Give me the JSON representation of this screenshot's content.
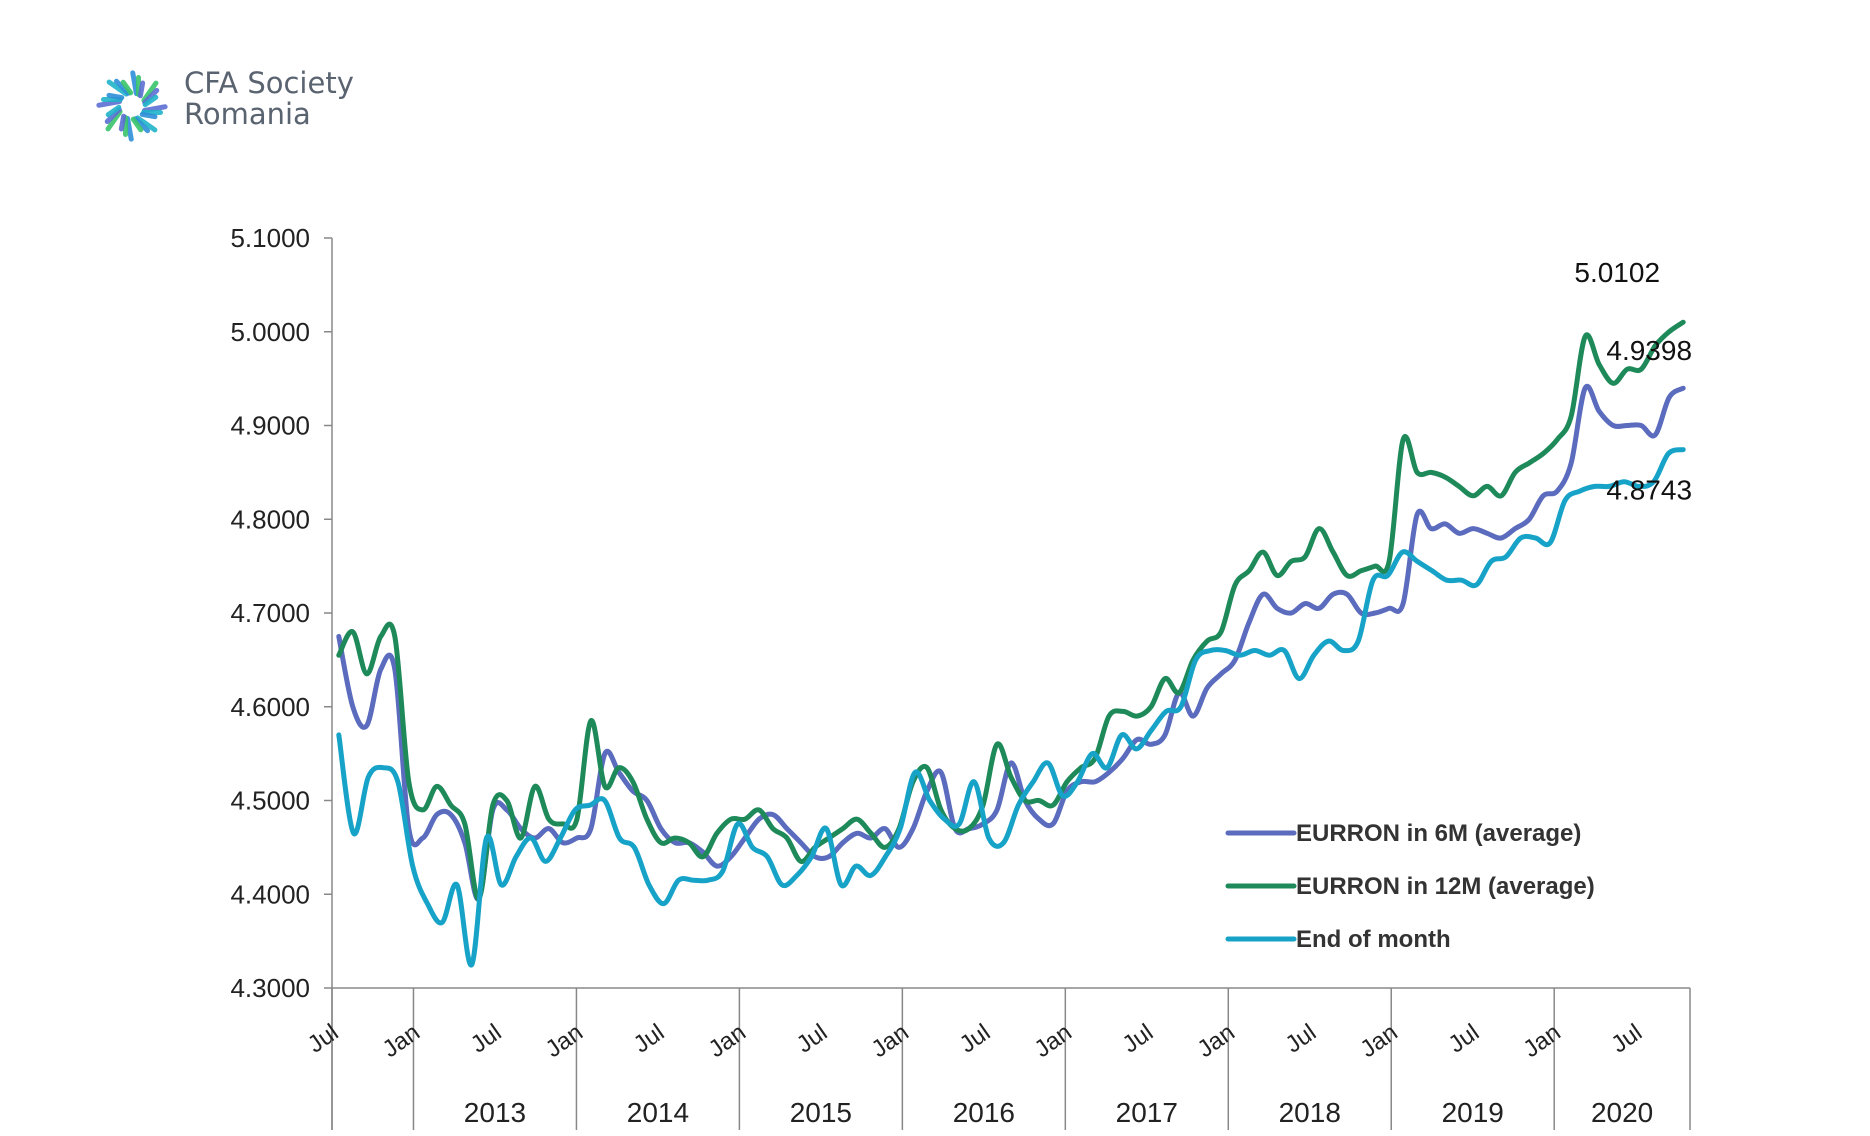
{
  "brand": {
    "name_line1": "CFA Society",
    "name_line2": "Romania",
    "logo_colors": [
      "#2e8fd8",
      "#39c46a",
      "#5b6fd1",
      "#1fb3c9"
    ]
  },
  "chart_data": {
    "type": "line",
    "ylim": [
      4.3,
      5.1
    ],
    "y_ticks": [
      "4.3000",
      "4.4000",
      "4.5000",
      "4.6000",
      "4.7000",
      "4.8000",
      "4.9000",
      "5.0000",
      "5.1000"
    ],
    "x_tick_labels": [
      "Jul",
      "Jan",
      "Jul",
      "Jan",
      "Jul",
      "Jan",
      "Jul",
      "Jan",
      "Jul",
      "Jan",
      "Jul",
      "Jan",
      "Jul",
      "Jan",
      "Jul",
      "Jan",
      "Jul"
    ],
    "years": [
      "2013",
      "2014",
      "2015",
      "2016",
      "2017",
      "2018",
      "2019",
      "2020"
    ],
    "x_start": "2012-07",
    "legend_position": "bottom-right",
    "series": [
      {
        "name": "EURRON in 6M (average)",
        "color": "#5b6bbd",
        "end_label": "4.9398",
        "values": [
          4.675,
          4.6,
          4.58,
          4.64,
          4.64,
          4.47,
          4.46,
          4.485,
          4.485,
          4.455,
          4.395,
          4.49,
          4.49,
          4.47,
          4.46,
          4.47,
          4.455,
          4.46,
          4.47,
          4.55,
          4.53,
          4.51,
          4.5,
          4.47,
          4.455,
          4.455,
          4.445,
          4.43,
          4.44,
          4.46,
          4.48,
          4.485,
          4.47,
          4.455,
          4.44,
          4.44,
          4.455,
          4.465,
          4.46,
          4.47,
          4.45,
          4.47,
          4.51,
          4.53,
          4.47,
          4.47,
          4.475,
          4.49,
          4.54,
          4.5,
          4.48,
          4.475,
          4.51,
          4.52,
          4.52,
          4.53,
          4.545,
          4.565,
          4.56,
          4.57,
          4.615,
          4.59,
          4.62,
          4.635,
          4.65,
          4.69,
          4.72,
          4.705,
          4.7,
          4.71,
          4.705,
          4.72,
          4.72,
          4.7,
          4.7,
          4.705,
          4.71,
          4.805,
          4.79,
          4.795,
          4.785,
          4.79,
          4.785,
          4.78,
          4.79,
          4.8,
          4.825,
          4.83,
          4.86,
          4.94,
          4.915,
          4.9,
          4.9,
          4.9,
          4.89,
          4.93,
          4.9398
        ]
      },
      {
        "name": "EURRON in 12M (average)",
        "color": "#1e8a5a",
        "end_label": "5.0102",
        "values": [
          4.655,
          4.68,
          4.635,
          4.675,
          4.675,
          4.52,
          4.49,
          4.515,
          4.495,
          4.475,
          4.395,
          4.495,
          4.5,
          4.46,
          4.515,
          4.48,
          4.475,
          4.48,
          4.585,
          4.515,
          4.535,
          4.52,
          4.48,
          4.455,
          4.46,
          4.455,
          4.44,
          4.465,
          4.48,
          4.48,
          4.49,
          4.47,
          4.46,
          4.435,
          4.45,
          4.46,
          4.47,
          4.48,
          4.465,
          4.45,
          4.47,
          4.52,
          4.535,
          4.49,
          4.47,
          4.47,
          4.495,
          4.56,
          4.525,
          4.5,
          4.5,
          4.495,
          4.52,
          4.535,
          4.545,
          4.59,
          4.595,
          4.59,
          4.6,
          4.63,
          4.615,
          4.65,
          4.67,
          4.68,
          4.73,
          4.745,
          4.765,
          4.74,
          4.755,
          4.76,
          4.79,
          4.765,
          4.74,
          4.745,
          4.75,
          4.755,
          4.885,
          4.85,
          4.85,
          4.845,
          4.835,
          4.825,
          4.835,
          4.825,
          4.85,
          4.86,
          4.87,
          4.885,
          4.91,
          4.995,
          4.965,
          4.945,
          4.96,
          4.96,
          4.985,
          5.0,
          5.0102
        ]
      },
      {
        "name": "End of month",
        "color": "#17a3c8",
        "end_label": "4.8743",
        "values": [
          4.57,
          4.465,
          4.525,
          4.535,
          4.52,
          4.43,
          4.39,
          4.37,
          4.41,
          4.325,
          4.46,
          4.41,
          4.44,
          4.46,
          4.435,
          4.46,
          4.49,
          4.495,
          4.5,
          4.46,
          4.45,
          4.41,
          4.39,
          4.415,
          4.415,
          4.415,
          4.425,
          4.475,
          4.45,
          4.44,
          4.41,
          4.42,
          4.44,
          4.47,
          4.41,
          4.43,
          4.42,
          4.44,
          4.47,
          4.53,
          4.5,
          4.48,
          4.475,
          4.52,
          4.46,
          4.455,
          4.495,
          4.52,
          4.54,
          4.505,
          4.52,
          4.55,
          4.535,
          4.57,
          4.555,
          4.575,
          4.595,
          4.6,
          4.65,
          4.66,
          4.66,
          4.655,
          4.66,
          4.655,
          4.66,
          4.63,
          4.655,
          4.67,
          4.66,
          4.67,
          4.735,
          4.74,
          4.765,
          4.755,
          4.745,
          4.735,
          4.735,
          4.73,
          4.755,
          4.76,
          4.78,
          4.78,
          4.775,
          4.82,
          4.83,
          4.835,
          4.835,
          4.84,
          4.835,
          4.84,
          4.87,
          4.8743
        ]
      }
    ]
  }
}
